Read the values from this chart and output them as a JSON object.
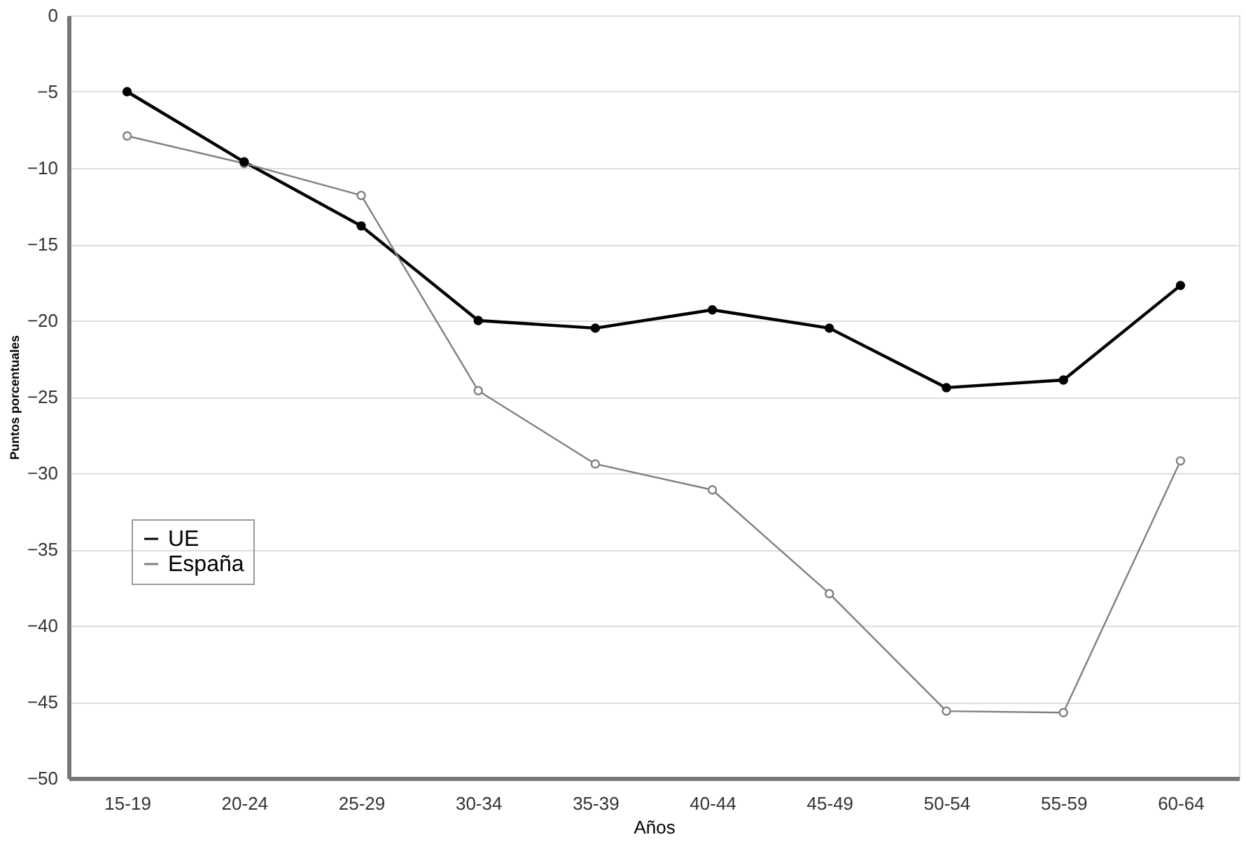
{
  "chart_data": {
    "type": "line",
    "xlabel": "Años",
    "ylabel": "Puntos porcentuales",
    "categories": [
      "15-19",
      "20-24",
      "25-29",
      "30-34",
      "35-39",
      "40-44",
      "45-49",
      "50-54",
      "55-59",
      "60-64"
    ],
    "series": [
      {
        "name": "UE",
        "color": "#000000",
        "values": [
          -5,
          -9.6,
          -13.8,
          -20,
          -20.5,
          -19.3,
          -20.5,
          -24.4,
          -23.9,
          -17.7
        ]
      },
      {
        "name": "España",
        "color": "#808080",
        "values": [
          -7.9,
          -9.7,
          -11.8,
          -24.6,
          -29.4,
          -31.1,
          -37.9,
          -45.6,
          -45.7,
          -29.2
        ]
      }
    ],
    "ylim": [
      -50,
      0
    ],
    "yticks": [
      0,
      -5,
      -10,
      -15,
      -20,
      -25,
      -30,
      -35,
      -40,
      -45,
      -50
    ],
    "grid": "y",
    "legend": "left",
    "marker": "circle",
    "line_style": "solid"
  }
}
